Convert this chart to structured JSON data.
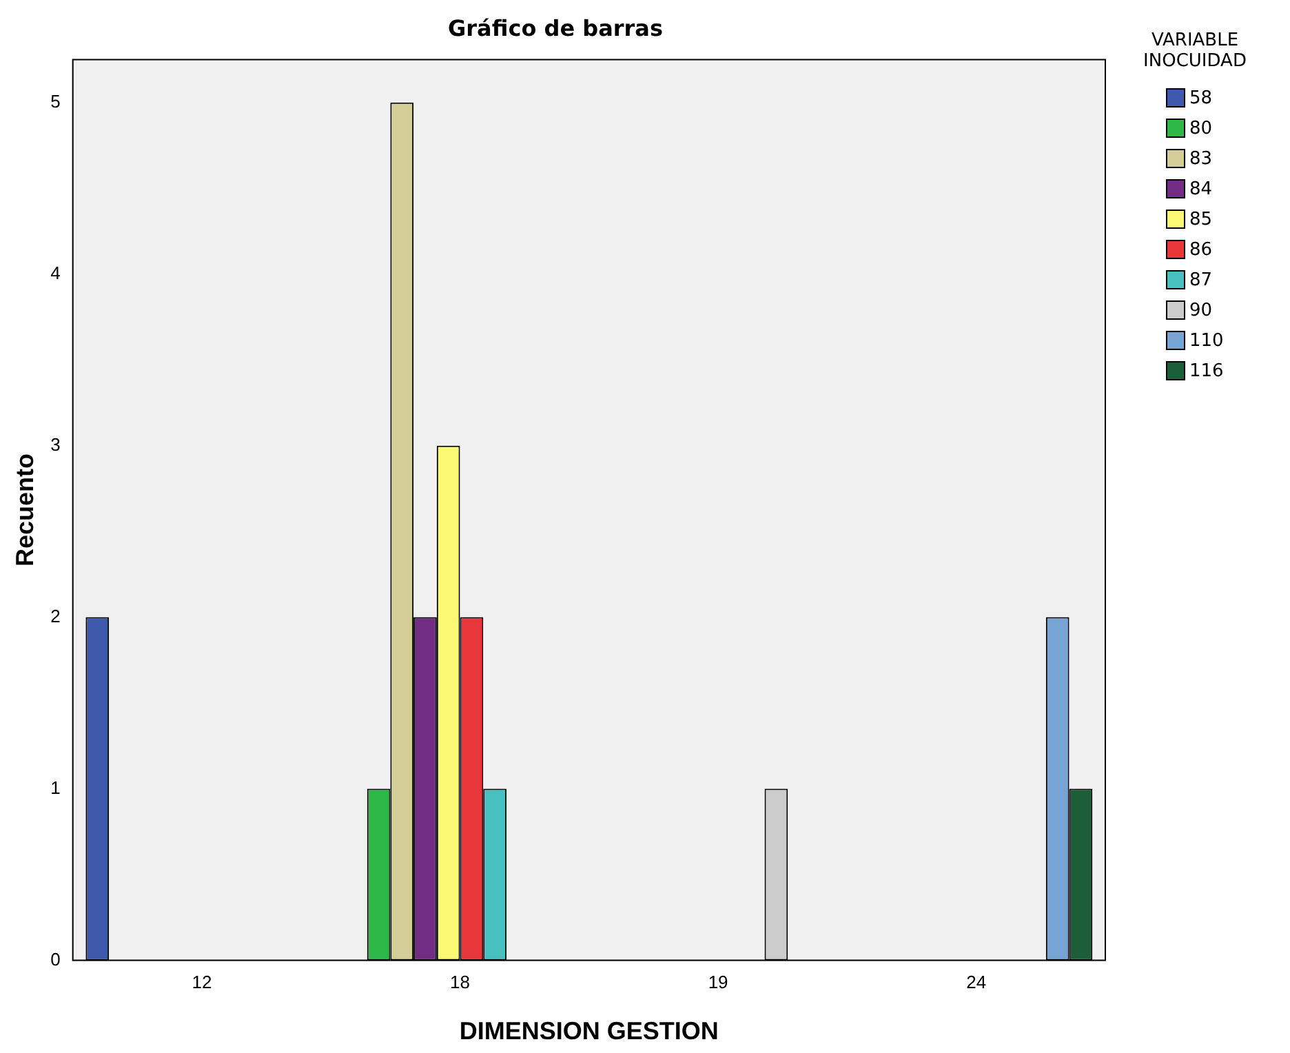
{
  "chart_data": {
    "type": "bar",
    "title": "Gráfico de barras",
    "xlabel": "DIMENSION GESTION",
    "ylabel": "Recuento",
    "legend_title": "VARIABLE INOCUIDAD",
    "legend": "right",
    "grid": false,
    "categories": [
      "12",
      "18",
      "19",
      "24"
    ],
    "ylim": [
      0,
      5.25
    ],
    "yticks": [
      0,
      1,
      2,
      3,
      4,
      5
    ],
    "series": [
      {
        "name": "58",
        "color": "#3e58ac",
        "values": [
          2,
          null,
          null,
          null
        ]
      },
      {
        "name": "80",
        "color": "#2eb848",
        "values": [
          null,
          1,
          null,
          null
        ]
      },
      {
        "name": "83",
        "color": "#d3ce97",
        "values": [
          null,
          5,
          null,
          null
        ]
      },
      {
        "name": "84",
        "color": "#712c83",
        "values": [
          null,
          2,
          null,
          null
        ]
      },
      {
        "name": "85",
        "color": "#fbf873",
        "values": [
          null,
          3,
          null,
          null
        ]
      },
      {
        "name": "86",
        "color": "#e8373b",
        "values": [
          null,
          2,
          null,
          null
        ]
      },
      {
        "name": "87",
        "color": "#48c0c0",
        "values": [
          null,
          1,
          null,
          null
        ]
      },
      {
        "name": "90",
        "color": "#cccccc",
        "values": [
          null,
          null,
          1,
          null
        ]
      },
      {
        "name": "110",
        "color": "#78a3d5",
        "values": [
          null,
          null,
          null,
          2
        ]
      },
      {
        "name": "116",
        "color": "#1b5e38",
        "values": [
          null,
          null,
          null,
          1
        ]
      }
    ]
  }
}
